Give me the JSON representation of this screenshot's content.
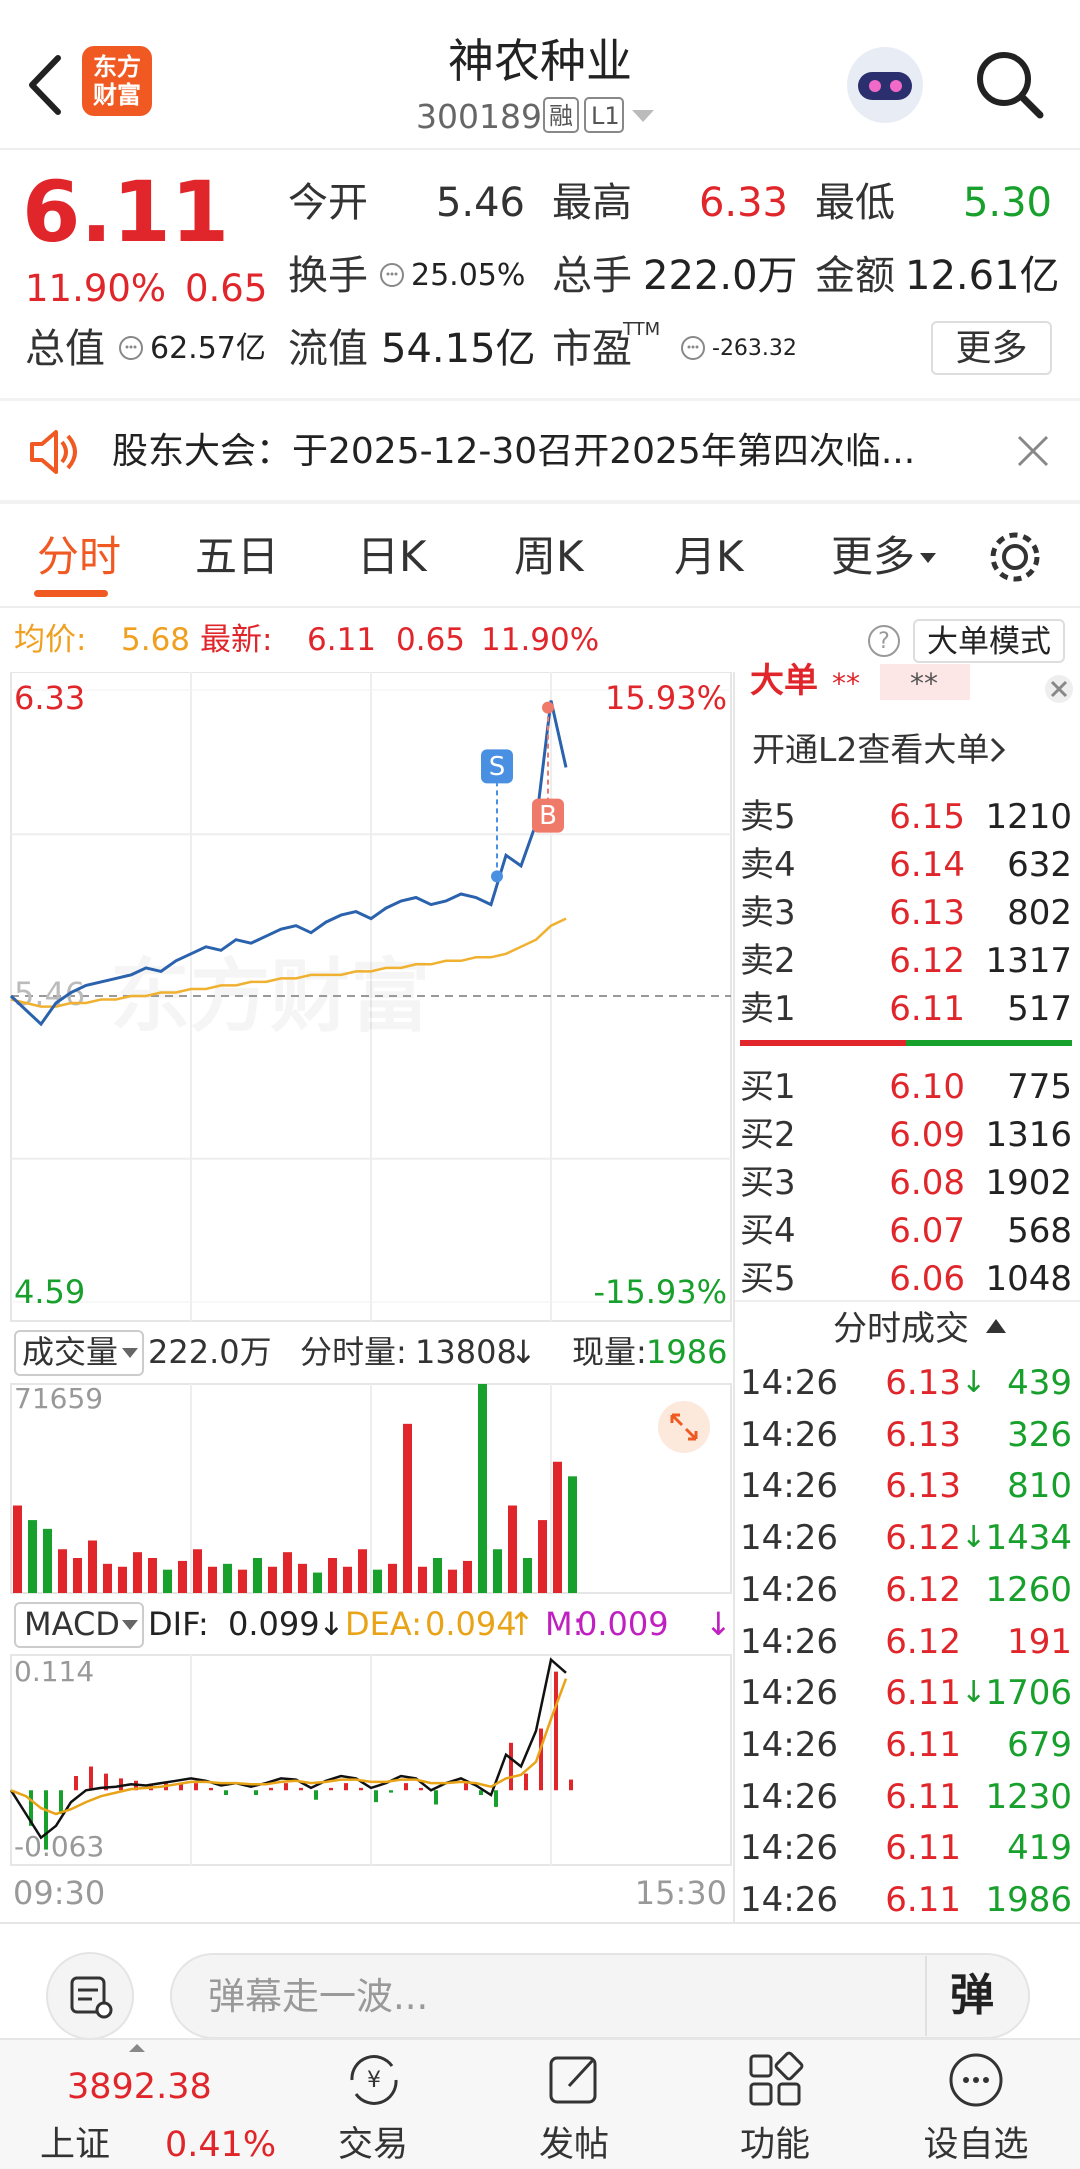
{
  "header": {
    "logo": [
      "东方",
      "财富"
    ],
    "title": "神农种业",
    "code": "300189",
    "tags": [
      "融",
      "L1"
    ]
  },
  "quote": {
    "price": "6.11",
    "pct": "11.90%",
    "change": "0.65",
    "fields": [
      {
        "label": "今开",
        "value": "5.46"
      },
      {
        "label": "最高",
        "value": "6.33"
      },
      {
        "label": "最低",
        "value": "5.30"
      },
      {
        "label": "换手",
        "value": "25.05%"
      },
      {
        "label": "总手",
        "value": "222.0万"
      },
      {
        "label": "金额",
        "value": "12.61亿"
      },
      {
        "label": "总值",
        "value": "62.57亿"
      },
      {
        "label": "流值",
        "value": "54.15亿"
      },
      {
        "label": "市盈",
        "sup": "TTM",
        "value": "-263.32"
      }
    ],
    "more": "更多"
  },
  "notice": {
    "text": "股东大会：于2025-12-30召开2025年第四次临..."
  },
  "tabs": [
    "分时",
    "五日",
    "日K",
    "周K",
    "月K",
    "更多"
  ],
  "info": {
    "change": "0.65",
    "pct": "11.90%",
    "mode": "大单模式"
  },
  "watermark": "东方财富",
  "volume_panel": {
    "label": "成交量",
    "total": "222.0万",
    "current_label": "分时量:",
    "current": 13808,
    "current_arrow": "↓",
    "now_label": "现量:",
    "now": 1986
  },
  "macd_panel": {
    "label": "MACD",
    "arrows": [
      "↓",
      "↑",
      "↓"
    ]
  },
  "chart_data": [
    {
      "type": "line",
      "xlim": [
        0,
        240
      ],
      "ylim": [
        4.59,
        6.33
      ],
      "yticks": [
        4.59,
        5.46,
        6.33
      ],
      "y2lim": [
        -15.93,
        15.93
      ],
      "y2ticks": [
        {
          "value": -15.93,
          "label": "-15.93%"
        },
        {
          "value": 15.93,
          "label": "15.93%"
        }
      ],
      "xticks": [
        {
          "value": 0,
          "label": "09:30"
        },
        {
          "value": 240,
          "label": "15:30"
        }
      ],
      "x": [
        0,
        5,
        10,
        15,
        20,
        25,
        30,
        35,
        40,
        45,
        50,
        55,
        60,
        65,
        70,
        75,
        80,
        85,
        90,
        95,
        100,
        105,
        110,
        115,
        120,
        125,
        130,
        135,
        140,
        145,
        150,
        155,
        160,
        165,
        170,
        175,
        180,
        185
      ],
      "series": [
        {
          "name": "最新:",
          "color": "#2a62ad",
          "values": [
            5.46,
            5.42,
            5.38,
            5.44,
            5.47,
            5.49,
            5.5,
            5.51,
            5.52,
            5.54,
            5.53,
            5.56,
            5.58,
            5.6,
            5.59,
            5.62,
            5.61,
            5.63,
            5.65,
            5.66,
            5.64,
            5.67,
            5.69,
            5.7,
            5.68,
            5.71,
            5.73,
            5.74,
            5.72,
            5.73,
            5.75,
            5.74,
            5.72,
            5.86,
            5.83,
            5.95,
            6.3,
            6.11
          ]
        },
        {
          "name": "均价:",
          "color": "#f0b030",
          "values": [
            5.45,
            5.44,
            5.43,
            5.43,
            5.44,
            5.44,
            5.45,
            5.45,
            5.46,
            5.46,
            5.47,
            5.47,
            5.48,
            5.48,
            5.49,
            5.49,
            5.5,
            5.5,
            5.51,
            5.51,
            5.52,
            5.52,
            5.52,
            5.53,
            5.53,
            5.54,
            5.54,
            5.55,
            5.55,
            5.56,
            5.56,
            5.57,
            5.57,
            5.58,
            5.6,
            5.62,
            5.66,
            5.68
          ]
        }
      ],
      "annotations": [
        {
          "label": "S",
          "x": 162,
          "value": 5.8,
          "color": "#4a90e2"
        },
        {
          "label": "B",
          "x": 179,
          "value": 6.28,
          "color": "#f07a6a"
        }
      ]
    },
    {
      "type": "bar",
      "xlim": [
        0,
        240
      ],
      "ylim": [
        0,
        71659
      ],
      "yticks": [
        71659
      ],
      "x": [
        0,
        5,
        10,
        15,
        20,
        25,
        30,
        35,
        40,
        45,
        50,
        55,
        60,
        65,
        70,
        75,
        80,
        85,
        90,
        95,
        100,
        105,
        110,
        115,
        120,
        125,
        130,
        135,
        140,
        145,
        150,
        155,
        160,
        165,
        170,
        175,
        180,
        185
      ],
      "values": [
        30000,
        25000,
        22000,
        15000,
        12000,
        18000,
        10000,
        9000,
        14000,
        12000,
        8000,
        11000,
        15000,
        9000,
        10000,
        8000,
        12000,
        9000,
        14000,
        10000,
        7000,
        12000,
        9000,
        15000,
        8000,
        10000,
        58000,
        9000,
        12000,
        8000,
        11000,
        71659,
        15000,
        30000,
        12000,
        25000,
        45000,
        40000
      ],
      "up_color": "#e0262b",
      "down_color": "#18a02c"
    },
    {
      "type": "macd",
      "xlim": [
        0,
        240
      ],
      "ylim": [
        -0.063,
        0.114
      ],
      "yticks": [
        -0.063,
        0.114
      ],
      "x": [
        0,
        5,
        10,
        15,
        20,
        25,
        30,
        35,
        40,
        45,
        50,
        55,
        60,
        65,
        70,
        75,
        80,
        85,
        90,
        95,
        100,
        105,
        110,
        115,
        120,
        125,
        130,
        135,
        140,
        145,
        150,
        155,
        160,
        165,
        170,
        175,
        180,
        185
      ],
      "series": [
        {
          "name": "DIF:",
          "color": "#111111",
          "values": [
            0.0,
            -0.02,
            -0.04,
            -0.03,
            -0.01,
            0.0,
            0.002,
            0.003,
            0.005,
            0.004,
            0.006,
            0.008,
            0.01,
            0.008,
            0.004,
            0.006,
            0.003,
            0.006,
            0.01,
            0.009,
            0.002,
            0.008,
            0.012,
            0.01,
            0.002,
            0.006,
            0.012,
            0.01,
            0.0,
            0.006,
            0.01,
            0.004,
            -0.004,
            0.03,
            0.02,
            0.05,
            0.11,
            0.099
          ]
        },
        {
          "name": "DEA:",
          "color": "#e8a317",
          "values": [
            0.0,
            -0.005,
            -0.015,
            -0.02,
            -0.016,
            -0.01,
            -0.005,
            -0.002,
            0.001,
            0.002,
            0.003,
            0.005,
            0.007,
            0.007,
            0.006,
            0.006,
            0.005,
            0.005,
            0.007,
            0.008,
            0.006,
            0.007,
            0.009,
            0.009,
            0.007,
            0.007,
            0.009,
            0.009,
            0.006,
            0.006,
            0.007,
            0.006,
            0.003,
            0.01,
            0.013,
            0.024,
            0.06,
            0.094
          ]
        },
        {
          "name": "M:",
          "color": "#c020c0",
          "up_color": "#e0262b",
          "down_color": "#18a02c",
          "values": [
            0,
            -0.03,
            -0.05,
            -0.02,
            0.012,
            0.02,
            0.014,
            0.01,
            0.008,
            0.004,
            0.006,
            0.006,
            0.006,
            0.002,
            -0.004,
            0,
            -0.004,
            0.002,
            0.006,
            0.002,
            -0.008,
            0.002,
            0.006,
            0.002,
            -0.01,
            -0.002,
            0.006,
            0.002,
            -0.012,
            0,
            0.006,
            -0.004,
            -0.014,
            0.04,
            0.014,
            0.052,
            0.1,
            0.009
          ]
        }
      ]
    }
  ],
  "big_order": {
    "title": "大单",
    "masks": [
      "**",
      "**"
    ],
    "promo": "开通L2查看大单"
  },
  "order_book": {
    "sell": [
      {
        "label": "卖5",
        "price": "6.15",
        "volume": 1210
      },
      {
        "label": "卖4",
        "price": "6.14",
        "volume": 632
      },
      {
        "label": "卖3",
        "price": "6.13",
        "volume": 802
      },
      {
        "label": "卖2",
        "price": "6.12",
        "volume": 1317
      },
      {
        "label": "卖1",
        "price": "6.11",
        "volume": 517
      }
    ],
    "buy": [
      {
        "label": "买1",
        "price": "6.10",
        "volume": 775
      },
      {
        "label": "买2",
        "price": "6.09",
        "volume": 1316
      },
      {
        "label": "买3",
        "price": "6.08",
        "volume": 1902
      },
      {
        "label": "买4",
        "price": "6.07",
        "volume": 568
      },
      {
        "label": "买5",
        "price": "6.06",
        "volume": 1048
      }
    ]
  },
  "trades": {
    "title": "分时成交",
    "rows": [
      {
        "time": "14:26",
        "price": "6.13",
        "arrow": "↓",
        "volume": 439,
        "color": "#18a02c"
      },
      {
        "time": "14:26",
        "price": "6.13",
        "volume": 326,
        "color": "#18a02c"
      },
      {
        "time": "14:26",
        "price": "6.13",
        "volume": 810,
        "color": "#18a02c"
      },
      {
        "time": "14:26",
        "price": "6.12",
        "arrow": "↓",
        "volume": 1434,
        "color": "#18a02c"
      },
      {
        "time": "14:26",
        "price": "6.12",
        "volume": 1260,
        "color": "#18a02c"
      },
      {
        "time": "14:26",
        "price": "6.12",
        "volume": 191,
        "color": "#e0262b"
      },
      {
        "time": "14:26",
        "price": "6.11",
        "arrow": "↓",
        "volume": 1706,
        "color": "#18a02c"
      },
      {
        "time": "14:26",
        "price": "6.11",
        "volume": 679,
        "color": "#18a02c"
      },
      {
        "time": "14:26",
        "price": "6.11",
        "volume": 1230,
        "color": "#18a02c"
      },
      {
        "time": "14:26",
        "price": "6.11",
        "volume": 419,
        "color": "#18a02c"
      },
      {
        "time": "14:26",
        "price": "6.11",
        "volume": 1986,
        "color": "#18a02c"
      }
    ]
  },
  "comment": {
    "placeholder": "弹幕走一波...",
    "button": "弹"
  },
  "footer": {
    "index_value": "3892.38",
    "index_name": "上证",
    "index_pct": "0.41%",
    "nav": [
      "交易",
      "发帖",
      "功能",
      "设自选"
    ]
  }
}
